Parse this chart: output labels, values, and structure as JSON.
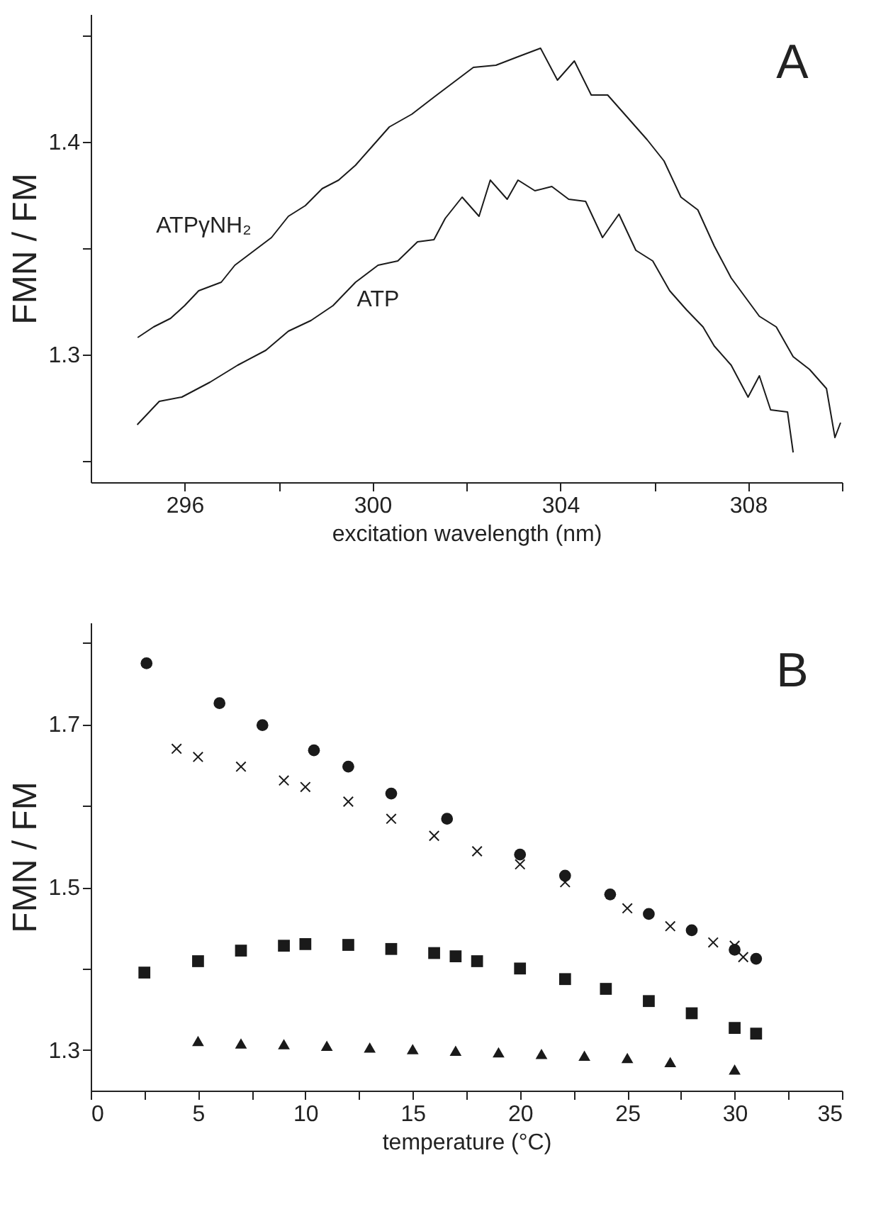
{
  "chart_data": [
    {
      "type": "line",
      "xlabel": "excitation wavelength (nm)",
      "ylabel": "FMN / FM",
      "annotations": [
        "A"
      ],
      "xlim": [
        294,
        310
      ],
      "ylim": [
        1.24,
        1.46
      ],
      "xticks": [
        296,
        {
          "value": 298,
          "label": null
        },
        300,
        {
          "value": 302,
          "label": null
        },
        304,
        {
          "value": 306,
          "label": null
        },
        308,
        {
          "value": 310,
          "label": null
        }
      ],
      "yticks": [
        {
          "value": 1.25,
          "label": null
        },
        1.3,
        {
          "value": 1.35,
          "label": null
        },
        1.4,
        {
          "value": 1.45,
          "label": null
        }
      ],
      "grid": false,
      "line_style": "solid",
      "series": [
        {
          "name": "ATPγNH₂",
          "color": "#1a1a1a",
          "x": [
            295.0,
            295.34,
            295.7,
            296.0,
            296.3,
            296.78,
            297.07,
            297.49,
            297.85,
            298.21,
            298.57,
            298.93,
            299.28,
            299.64,
            300.0,
            300.36,
            300.84,
            301.31,
            301.67,
            302.15,
            302.63,
            303.1,
            303.58,
            303.94,
            304.3,
            304.66,
            305.01,
            305.37,
            305.85,
            306.21,
            306.57,
            306.93,
            307.28,
            307.64,
            307.94,
            308.24,
            308.6,
            308.96,
            309.31,
            309.67,
            309.85,
            309.97
          ],
          "values": [
            1.308,
            1.313,
            1.317,
            1.323,
            1.33,
            1.334,
            1.342,
            1.349,
            1.355,
            1.365,
            1.37,
            1.378,
            1.382,
            1.389,
            1.398,
            1.407,
            1.413,
            1.421,
            1.427,
            1.435,
            1.436,
            1.44,
            1.444,
            1.429,
            1.438,
            1.422,
            1.422,
            1.413,
            1.401,
            1.391,
            1.374,
            1.368,
            1.351,
            1.336,
            1.327,
            1.318,
            1.313,
            1.299,
            1.293,
            1.284,
            1.261,
            1.268
          ]
        },
        {
          "name": "ATP",
          "color": "#1a1a1a",
          "x": [
            294.99,
            295.46,
            295.94,
            296.54,
            297.13,
            297.73,
            298.21,
            298.69,
            299.16,
            299.64,
            300.12,
            300.54,
            300.96,
            301.31,
            301.55,
            301.91,
            302.27,
            302.51,
            302.87,
            303.1,
            303.46,
            303.82,
            304.18,
            304.54,
            304.9,
            305.25,
            305.61,
            305.97,
            306.33,
            306.69,
            307.04,
            307.28,
            307.64,
            308.0,
            308.24,
            308.48,
            308.84,
            308.96
          ],
          "values": [
            1.267,
            1.278,
            1.28,
            1.287,
            1.295,
            1.302,
            1.311,
            1.316,
            1.323,
            1.334,
            1.342,
            1.344,
            1.353,
            1.354,
            1.364,
            1.374,
            1.365,
            1.382,
            1.373,
            1.382,
            1.377,
            1.379,
            1.373,
            1.372,
            1.355,
            1.366,
            1.349,
            1.344,
            1.33,
            1.321,
            1.313,
            1.304,
            1.295,
            1.28,
            1.29,
            1.274,
            1.273,
            1.254
          ]
        }
      ]
    },
    {
      "type": "scatter",
      "xlabel": "temperature (°C)",
      "ylabel": "FMN / FM",
      "annotations": [
        "B"
      ],
      "xlim": [
        0,
        35
      ],
      "ylim": [
        1.25,
        1.825
      ],
      "xticks": [
        0,
        {
          "value": 2.5,
          "label": null
        },
        5,
        {
          "value": 7.5,
          "label": null
        },
        10,
        {
          "value": 12.5,
          "label": null
        },
        15,
        {
          "value": 17.5,
          "label": null
        },
        20,
        {
          "value": 22.5,
          "label": null
        },
        25,
        {
          "value": 27.5,
          "label": null
        },
        30,
        {
          "value": 32.5,
          "label": null
        },
        35
      ],
      "yticks": [
        1.3,
        {
          "value": 1.4,
          "label": null
        },
        1.5,
        {
          "value": 1.6,
          "label": null
        },
        1.7,
        {
          "value": 1.8,
          "label": null
        }
      ],
      "grid": false,
      "series": [
        {
          "color": "#1a1a1a",
          "marker": "circle",
          "x": [
            2.6,
            6.0,
            8.0,
            10.4,
            12.0,
            14.0,
            16.6,
            20.0,
            22.1,
            24.2,
            26.0,
            28.0,
            30.0,
            31.0
          ],
          "values": [
            1.775,
            1.726,
            1.699,
            1.668,
            1.648,
            1.615,
            1.584,
            1.54,
            1.514,
            1.491,
            1.467,
            1.447,
            1.423,
            1.412
          ]
        },
        {
          "color": "#1a1a1a",
          "marker": "cross",
          "x": [
            4.0,
            5.0,
            7.0,
            9.0,
            10.0,
            12.0,
            14.0,
            16.0,
            18.0,
            20.0,
            22.1,
            25.0,
            27.0,
            29.0,
            30.0,
            30.4
          ],
          "values": [
            1.67,
            1.66,
            1.648,
            1.631,
            1.623,
            1.605,
            1.584,
            1.563,
            1.544,
            1.528,
            1.506,
            1.474,
            1.452,
            1.432,
            1.428,
            1.414
          ]
        },
        {
          "color": "#1a1a1a",
          "marker": "square",
          "x": [
            2.5,
            5.0,
            7.0,
            9.0,
            10.0,
            12.0,
            14.0,
            16.0,
            17.0,
            18.0,
            20.0,
            22.1,
            24.0,
            26.0,
            28.0,
            30.0,
            31.0
          ],
          "values": [
            1.395,
            1.409,
            1.422,
            1.428,
            1.43,
            1.429,
            1.424,
            1.419,
            1.415,
            1.409,
            1.4,
            1.387,
            1.375,
            1.36,
            1.345,
            1.327,
            1.32
          ]
        },
        {
          "color": "#1a1a1a",
          "marker": "triangle",
          "x": [
            5,
            7,
            9,
            11,
            13,
            15,
            17,
            19,
            21,
            23,
            25,
            27,
            30
          ],
          "values": [
            1.311,
            1.308,
            1.307,
            1.305,
            1.303,
            1.301,
            1.299,
            1.297,
            1.295,
            1.293,
            1.29,
            1.285,
            1.276
          ]
        }
      ]
    }
  ]
}
